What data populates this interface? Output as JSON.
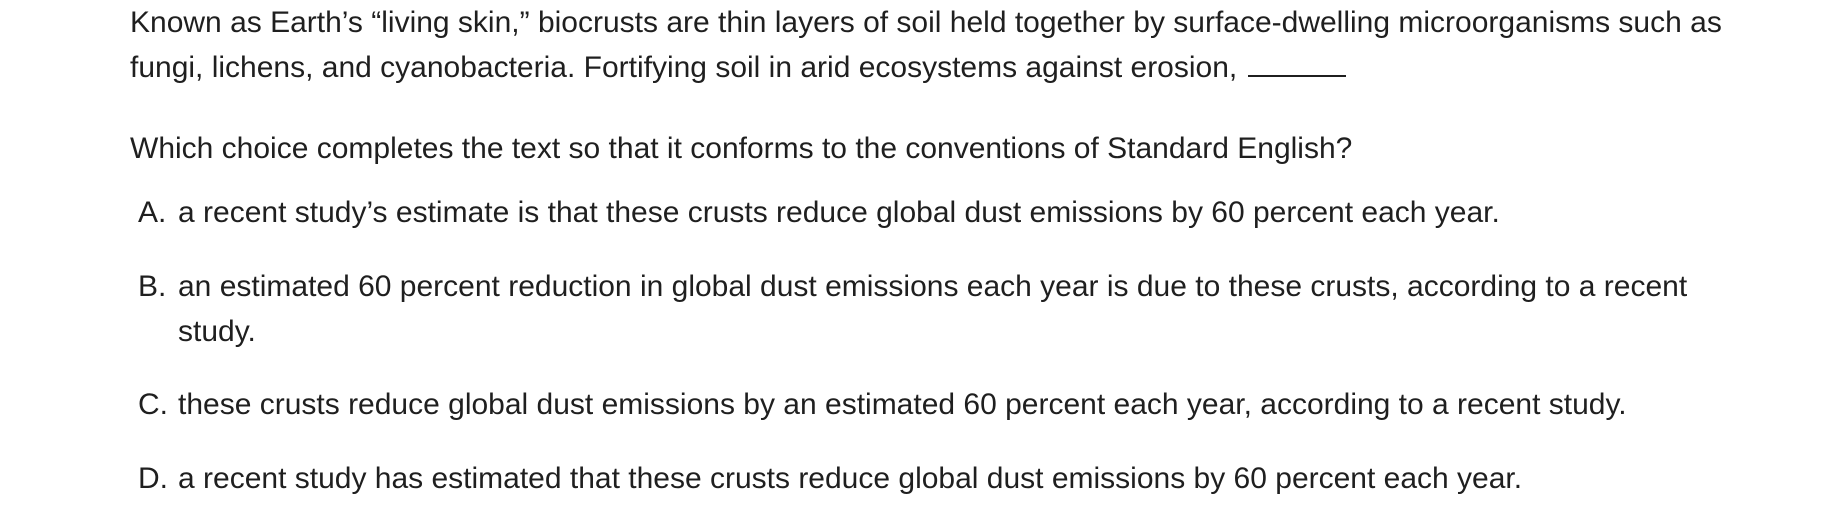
{
  "passage": {
    "text": "Known as Earth’s “living skin,” biocrusts are thin layers of soil held together by surface-dwelling microorganisms such as fungi, lichens, and cyanobacteria. Fortifying soil in arid ecosystems against erosion,"
  },
  "question": {
    "text": "Which choice completes the text so that it conforms to the conventions of Standard English?"
  },
  "choices": [
    {
      "letter": "A.",
      "text": "a recent study’s estimate is that these crusts reduce global dust emissions by 60 percent each year."
    },
    {
      "letter": "B.",
      "text": "an estimated 60 percent reduction in global dust emissions each year is due to these crusts, according to a recent study."
    },
    {
      "letter": "C.",
      "text": "these crusts reduce global dust emissions by an estimated 60 percent each year, according to a recent study."
    },
    {
      "letter": "D.",
      "text": "a recent study has estimated that these crusts reduce global dust emissions by 60 percent each year."
    }
  ]
}
